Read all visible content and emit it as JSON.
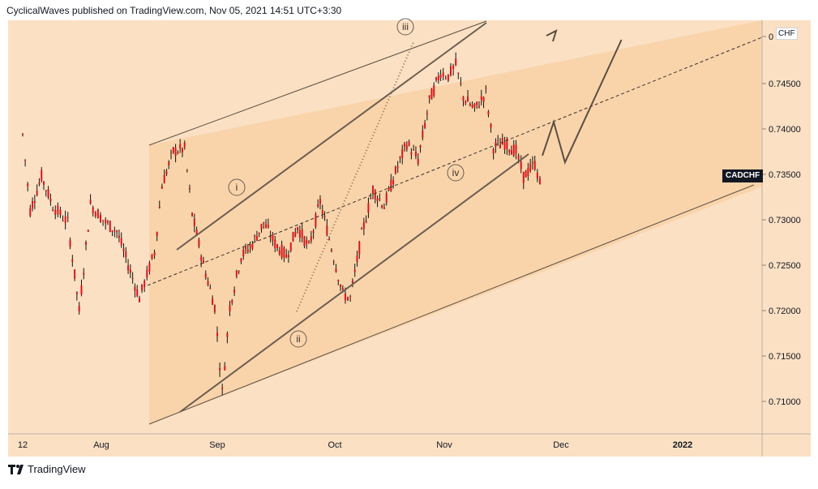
{
  "header": {
    "publisher_line": "CyclicalWaves published on TradingView.com, Nov 05, 2021 14:51 UTC+3:30"
  },
  "footer": {
    "brand": "TradingView"
  },
  "badges": {
    "currency": "CHF",
    "symbol": "CADCHF"
  },
  "colors": {
    "background": "#fbe0c3",
    "channel_fill": "#f9d4ab",
    "candle": "#d6161c",
    "wick": "#111111",
    "lines": "#6b5d4f"
  },
  "chart_data": {
    "type": "candlestick",
    "symbol": "CADCHF",
    "currency": "CHF",
    "y_ticks": [
      "0",
      "0.74500",
      "0.74000",
      "0.73500",
      "0.73000",
      "0.72500",
      "0.72000",
      "0.71500",
      "0.71000"
    ],
    "x_ticks": [
      "12",
      "Aug",
      "Sep",
      "Oct",
      "Nov",
      "Dec",
      "2022"
    ],
    "ylim": [
      0.7077,
      0.7512
    ],
    "wave_labels": [
      "i",
      "ii",
      "iii",
      "iv"
    ],
    "price_path": [
      [
        "2021-07-12",
        0.7395
      ],
      [
        "2021-07-14",
        0.7305
      ],
      [
        "2021-07-17",
        0.7345
      ],
      [
        "2021-07-20",
        0.731
      ],
      [
        "2021-07-24",
        0.729
      ],
      [
        "2021-07-27",
        0.7185
      ],
      [
        "2021-07-30",
        0.7312
      ],
      [
        "2021-08-03",
        0.729
      ],
      [
        "2021-08-06",
        0.728
      ],
      [
        "2021-08-09",
        0.724
      ],
      [
        "2021-08-12",
        0.72
      ],
      [
        "2021-08-16",
        0.7255
      ],
      [
        "2021-08-18",
        0.7335
      ],
      [
        "2021-08-21",
        0.7375
      ],
      [
        "2021-08-24",
        0.7378
      ],
      [
        "2021-08-26",
        0.73
      ],
      [
        "2021-08-29",
        0.724
      ],
      [
        "2021-09-01",
        0.719
      ],
      [
        "2021-09-03",
        0.7088
      ],
      [
        "2021-09-05",
        0.719
      ],
      [
        "2021-09-08",
        0.725
      ],
      [
        "2021-09-11",
        0.7265
      ],
      [
        "2021-09-14",
        0.729
      ],
      [
        "2021-09-17",
        0.7265
      ],
      [
        "2021-09-20",
        0.725
      ],
      [
        "2021-09-23",
        0.7285
      ],
      [
        "2021-09-26",
        0.726
      ],
      [
        "2021-09-29",
        0.7315
      ],
      [
        "2021-10-02",
        0.726
      ],
      [
        "2021-10-05",
        0.7205
      ],
      [
        "2021-10-07",
        0.72
      ],
      [
        "2021-10-10",
        0.7275
      ],
      [
        "2021-10-13",
        0.733
      ],
      [
        "2021-10-16",
        0.731
      ],
      [
        "2021-10-19",
        0.735
      ],
      [
        "2021-10-22",
        0.7385
      ],
      [
        "2021-10-25",
        0.7365
      ],
      [
        "2021-10-28",
        0.7435
      ],
      [
        "2021-10-31",
        0.747
      ],
      [
        "2021-11-02",
        0.7465
      ],
      [
        "2021-11-04",
        0.7478
      ],
      [
        "2021-11-06",
        0.744
      ],
      [
        "2021-11-09",
        0.7425
      ],
      [
        "2021-11-12",
        0.7445
      ],
      [
        "2021-11-14",
        0.738
      ],
      [
        "2021-11-17",
        0.7385
      ],
      [
        "2021-11-20",
        0.7375
      ],
      [
        "2021-11-22",
        0.7345
      ],
      [
        "2021-11-25",
        0.736
      ],
      [
        "2021-11-27",
        0.7325
      ]
    ],
    "projection": [
      [
        "2021-11-27",
        0.737
      ],
      [
        "2021-11-30",
        0.741
      ],
      [
        "2021-12-03",
        0.7362
      ],
      [
        "2021-12-18",
        0.7508
      ]
    ]
  }
}
